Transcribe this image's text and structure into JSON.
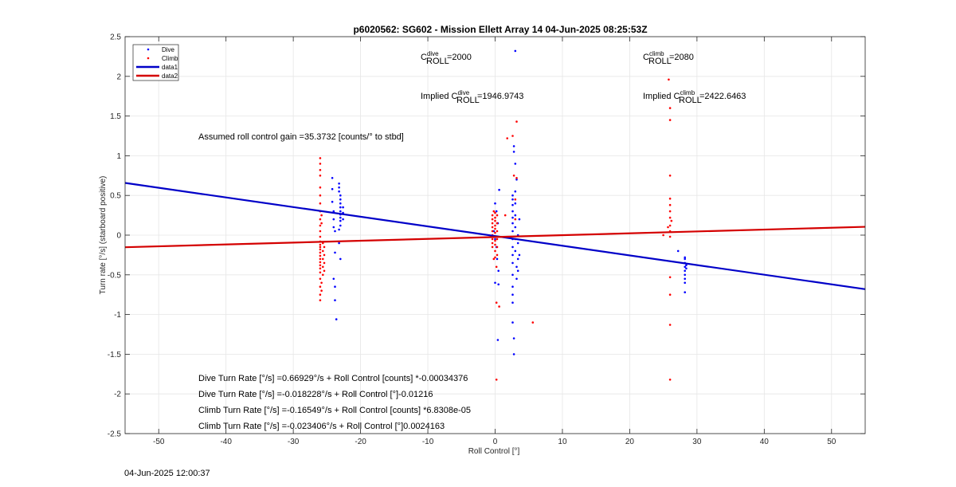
{
  "chart_data": {
    "type": "scatter",
    "title": "p6020562: SG602 - Mission Ellett Array 14 04-Jun-2025 08:25:53Z",
    "xlabel": "Roll Control [°]",
    "ylabel": "Turn rate [°/s] (starboard positive)",
    "xlim": [
      -55,
      55
    ],
    "ylim": [
      -2.5,
      2.5
    ],
    "xticks": [
      -50,
      -40,
      -30,
      -20,
      -10,
      0,
      10,
      20,
      30,
      40,
      50
    ],
    "yticks": [
      -2.5,
      -2,
      -1.5,
      -1,
      -0.5,
      0,
      0.5,
      1,
      1.5,
      2,
      2.5
    ],
    "grid": true,
    "legend_position": "top-left",
    "legend": [
      "Dive",
      "Climb",
      "data1",
      "data2"
    ],
    "series": [
      {
        "name": "Dive",
        "kind": "points",
        "color": "#0000ff",
        "points": [
          [
            -24.2,
            0.72
          ],
          [
            -24.2,
            0.58
          ],
          [
            -24.2,
            0.42
          ],
          [
            -24.0,
            0.3
          ],
          [
            -24.0,
            0.2
          ],
          [
            -24.0,
            0.1
          ],
          [
            -23.8,
            0.05
          ],
          [
            -23.8,
            -0.22
          ],
          [
            -24.0,
            -0.55
          ],
          [
            -23.8,
            -0.65
          ],
          [
            -23.8,
            -0.82
          ],
          [
            -23.6,
            -1.06
          ],
          [
            -23.2,
            0.65
          ],
          [
            -23.2,
            0.6
          ],
          [
            -23.2,
            0.55
          ],
          [
            -23.0,
            0.5
          ],
          [
            -23.0,
            0.45
          ],
          [
            -23.0,
            0.4
          ],
          [
            -23.0,
            0.35
          ],
          [
            -23.0,
            0.3
          ],
          [
            -23.0,
            0.26
          ],
          [
            -23.0,
            0.22
          ],
          [
            -23.0,
            0.18
          ],
          [
            -23.0,
            0.12
          ],
          [
            -23.2,
            0.07
          ],
          [
            -23.2,
            -0.1
          ],
          [
            -23.0,
            -0.3
          ],
          [
            -22.6,
            0.2
          ],
          [
            -22.6,
            0.28
          ],
          [
            -22.6,
            0.35
          ],
          [
            0.0,
            0.4
          ],
          [
            0.2,
            0.3
          ],
          [
            0.4,
            0.15
          ],
          [
            -0.2,
            0.05
          ],
          [
            0.0,
            -0.05
          ],
          [
            0.2,
            -0.15
          ],
          [
            0.3,
            -0.3
          ],
          [
            0.5,
            -0.45
          ],
          [
            0.0,
            -0.6
          ],
          [
            0.5,
            -0.62
          ],
          [
            0.4,
            -1.32
          ],
          [
            0.6,
            0.57
          ],
          [
            2.6,
            0.5
          ],
          [
            2.6,
            0.45
          ],
          [
            2.6,
            0.38
          ],
          [
            2.6,
            0.3
          ],
          [
            2.6,
            0.22
          ],
          [
            2.6,
            0.15
          ],
          [
            2.6,
            0.05
          ],
          [
            2.6,
            -0.05
          ],
          [
            2.6,
            -0.15
          ],
          [
            2.6,
            -0.25
          ],
          [
            2.6,
            -0.35
          ],
          [
            2.6,
            -0.5
          ],
          [
            2.6,
            -0.65
          ],
          [
            2.6,
            -0.75
          ],
          [
            2.6,
            -0.85
          ],
          [
            2.6,
            -1.1
          ],
          [
            2.8,
            -1.3
          ],
          [
            2.8,
            -1.5
          ],
          [
            2.8,
            1.12
          ],
          [
            2.8,
            1.05
          ],
          [
            3.0,
            0.9
          ],
          [
            3.0,
            0.55
          ],
          [
            3.0,
            0.4
          ],
          [
            3.0,
            0.25
          ],
          [
            3.0,
            0.1
          ],
          [
            3.0,
            -0.2
          ],
          [
            3.2,
            -0.4
          ],
          [
            3.2,
            -0.55
          ],
          [
            3.4,
            0.0
          ],
          [
            3.4,
            -0.1
          ],
          [
            3.4,
            -0.3
          ],
          [
            3.4,
            -0.45
          ],
          [
            3.0,
            2.32
          ],
          [
            3.2,
            0.7
          ],
          [
            3.6,
            0.2
          ],
          [
            3.6,
            -0.25
          ],
          [
            27.2,
            -0.2
          ],
          [
            28.2,
            -0.3
          ],
          [
            28.2,
            -0.35
          ],
          [
            28.2,
            -0.4
          ],
          [
            28.2,
            -0.45
          ],
          [
            28.2,
            -0.5
          ],
          [
            28.2,
            -0.55
          ],
          [
            28.2,
            -0.6
          ],
          [
            28.2,
            -0.72
          ],
          [
            28.4,
            -0.38
          ],
          [
            28.4,
            -0.42
          ],
          [
            28.2,
            -0.28
          ]
        ]
      },
      {
        "name": "Climb",
        "kind": "points",
        "color": "#ff0000",
        "points": [
          [
            -26.0,
            0.97
          ],
          [
            -26.0,
            0.9
          ],
          [
            -26.0,
            0.82
          ],
          [
            -26.0,
            0.75
          ],
          [
            -26.0,
            0.6
          ],
          [
            -26.0,
            0.5
          ],
          [
            -26.0,
            0.4
          ],
          [
            -26.0,
            0.3
          ],
          [
            -26.0,
            0.2
          ],
          [
            -26.0,
            0.12
          ],
          [
            -26.0,
            0.05
          ],
          [
            -26.0,
            -0.02
          ],
          [
            -26.0,
            -0.08
          ],
          [
            -26.0,
            -0.12
          ],
          [
            -26.0,
            -0.15
          ],
          [
            -26.0,
            -0.18
          ],
          [
            -26.0,
            -0.22
          ],
          [
            -26.0,
            -0.26
          ],
          [
            -26.0,
            -0.3
          ],
          [
            -26.0,
            -0.34
          ],
          [
            -26.0,
            -0.38
          ],
          [
            -26.0,
            -0.42
          ],
          [
            -26.0,
            -0.47
          ],
          [
            -26.0,
            -0.55
          ],
          [
            -26.0,
            -0.65
          ],
          [
            -26.0,
            -0.75
          ],
          [
            -26.0,
            -0.82
          ],
          [
            -25.6,
            -0.1
          ],
          [
            -25.6,
            -0.2
          ],
          [
            -25.6,
            -0.3
          ],
          [
            -25.6,
            -0.4
          ],
          [
            -25.6,
            -0.5
          ],
          [
            -25.4,
            -0.15
          ],
          [
            -25.4,
            -0.25
          ],
          [
            -25.4,
            -0.35
          ],
          [
            -25.4,
            -0.45
          ],
          [
            -25.8,
            0.25
          ],
          [
            -25.8,
            0.15
          ],
          [
            -25.8,
            -0.6
          ],
          [
            -25.8,
            -0.7
          ],
          [
            -0.4,
            0.25
          ],
          [
            -0.4,
            0.2
          ],
          [
            -0.4,
            0.15
          ],
          [
            -0.4,
            0.1
          ],
          [
            -0.4,
            0.05
          ],
          [
            -0.4,
            0.0
          ],
          [
            -0.4,
            -0.05
          ],
          [
            -0.4,
            -0.1
          ],
          [
            -0.4,
            -0.15
          ],
          [
            0.0,
            0.28
          ],
          [
            0.0,
            0.22
          ],
          [
            0.0,
            0.18
          ],
          [
            0.0,
            0.12
          ],
          [
            0.0,
            0.08
          ],
          [
            0.0,
            0.03
          ],
          [
            0.0,
            -0.02
          ],
          [
            0.0,
            -0.07
          ],
          [
            0.0,
            -0.12
          ],
          [
            0.0,
            -0.2
          ],
          [
            0.0,
            -0.28
          ],
          [
            0.3,
            0.25
          ],
          [
            0.3,
            0.15
          ],
          [
            0.3,
            0.05
          ],
          [
            0.3,
            -0.05
          ],
          [
            0.3,
            -0.15
          ],
          [
            0.3,
            -0.25
          ],
          [
            -0.2,
            0.3
          ],
          [
            -0.2,
            -0.3
          ],
          [
            0.2,
            -0.4
          ],
          [
            0.2,
            -0.85
          ],
          [
            0.2,
            -1.82
          ],
          [
            1.8,
            1.22
          ],
          [
            2.6,
            1.25
          ],
          [
            2.8,
            0.75
          ],
          [
            1.5,
            0.25
          ],
          [
            3.0,
            0.45
          ],
          [
            3.0,
            0.2
          ],
          [
            3.0,
            -0.05
          ],
          [
            3.2,
            1.43
          ],
          [
            3.2,
            0.72
          ],
          [
            5.6,
            -1.1
          ],
          [
            0.6,
            -0.9
          ],
          [
            25.0,
            0.0
          ],
          [
            25.8,
            1.96
          ],
          [
            26.0,
            1.6
          ],
          [
            26.0,
            1.45
          ],
          [
            26.0,
            0.75
          ],
          [
            26.0,
            0.46
          ],
          [
            26.0,
            0.38
          ],
          [
            26.0,
            0.3
          ],
          [
            26.0,
            0.22
          ],
          [
            26.0,
            0.12
          ],
          [
            26.0,
            0.05
          ],
          [
            26.0,
            -0.02
          ],
          [
            26.0,
            -0.53
          ],
          [
            26.0,
            -0.75
          ],
          [
            26.0,
            -1.13
          ],
          [
            26.0,
            -1.82
          ],
          [
            25.7,
            0.1
          ],
          [
            26.2,
            0.18
          ]
        ]
      },
      {
        "name": "data1",
        "kind": "line",
        "color": "#0000c8",
        "x": [
          -55,
          55
        ],
        "y": [
          0.6574,
          -0.6811
        ]
      },
      {
        "name": "data2",
        "kind": "line",
        "color": "#d40000",
        "x": [
          -55,
          55
        ],
        "y": [
          -0.1525,
          0.1049
        ]
      }
    ],
    "annotations": {
      "c_dive_base": "C",
      "c_dive_sup": "dive",
      "c_dive_sub": "ROLL",
      "c_dive_value": "=2000",
      "c_climb_base": "C",
      "c_climb_sup": "climb",
      "c_climb_sub": "ROLL",
      "c_climb_value": "=2080",
      "implied_dive_prefix": "Implied C",
      "implied_dive_sup": "dive",
      "implied_dive_sub": "ROLL",
      "implied_dive_value": "=1946.9743",
      "implied_climb_prefix": "Implied C",
      "implied_climb_sup": "climb",
      "implied_climb_sub": "ROLL",
      "implied_climb_value": "=2422.6463",
      "gain": "Assumed roll control gain =35.3732 [counts/° to stbd]",
      "fit_lines": [
        "Dive Turn Rate [°/s] =0.66929°/s + Roll Control [counts] *-0.00034376",
        "Dive Turn Rate [°/s] =-0.018228°/s + Roll Control [°]-0.01216",
        "Climb Turn Rate [°/s] =-0.16549°/s + Roll Control [counts] *6.8308e-05",
        "Climb Turn Rate [°/s] =-0.023406°/s + Roll Control [°]0.0024163"
      ]
    }
  },
  "footer": {
    "timestamp": "04-Jun-2025 12:00:37"
  }
}
